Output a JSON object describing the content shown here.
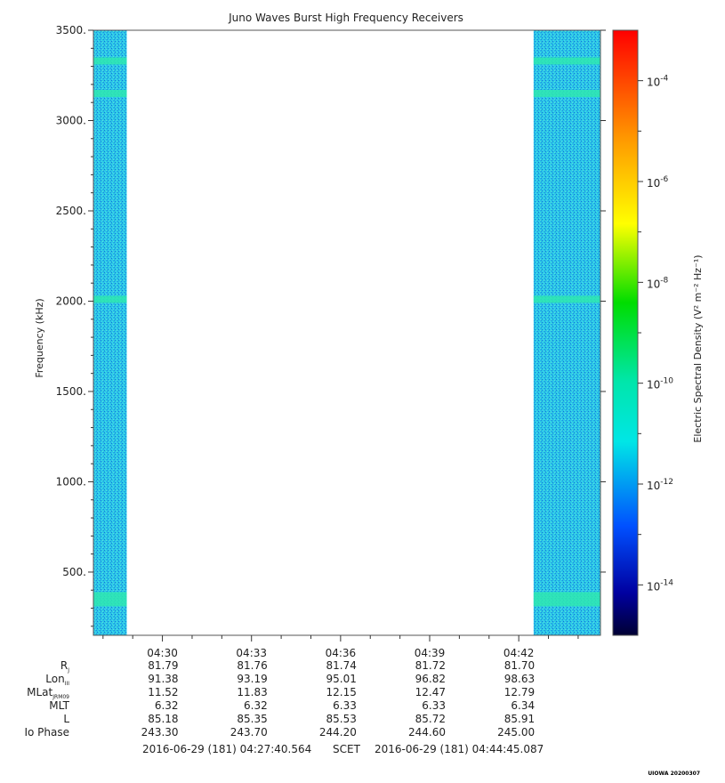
{
  "chart_data": {
    "type": "heatmap",
    "title": "Juno Waves Burst High Frequency Receivers",
    "ylabel": "Frequency (kHz)",
    "colorbar_label": "Electric Spectral Density (V² m⁻² Hz⁻¹)",
    "ylim": [
      150,
      3500
    ],
    "yticks": [
      {
        "value": 500,
        "label": "500."
      },
      {
        "value": 1000,
        "label": "1000."
      },
      {
        "value": 1500,
        "label": "1500."
      },
      {
        "value": 2000,
        "label": "2000."
      },
      {
        "value": 2500,
        "label": "2500."
      },
      {
        "value": 3000,
        "label": "3000."
      },
      {
        "value": 3500,
        "label": "3500."
      }
    ],
    "x_time_range": [
      "04:27:40.564",
      "04:44:45.087"
    ],
    "xticks": [
      "04:30",
      "04:33",
      "04:36",
      "04:39",
      "04:42"
    ],
    "colorbar_log_range": [
      -15,
      -3
    ],
    "colorbar_ticks": [
      {
        "exp": -14,
        "label": "10",
        "sup": "-14"
      },
      {
        "exp": -12,
        "label": "10",
        "sup": "-12"
      },
      {
        "exp": -10,
        "label": "10",
        "sup": "-10"
      },
      {
        "exp": -8,
        "label": "10",
        "sup": "-8"
      },
      {
        "exp": -6,
        "label": "10",
        "sup": "-6"
      },
      {
        "exp": -4,
        "label": "10",
        "sup": "-4"
      }
    ],
    "data_blocks": [
      {
        "start": "04:27:40",
        "end": "04:28:48",
        "background_log_level": -12
      },
      {
        "start": "04:42:30",
        "end": "04:44:45",
        "background_log_level": -12
      }
    ],
    "emission_bands_khz": [
      350,
      2010,
      3150,
      3330
    ],
    "ephemeris": {
      "rows": [
        {
          "label": "R",
          "sub": "J",
          "values": [
            "81.79",
            "81.76",
            "81.74",
            "81.72",
            "81.70"
          ]
        },
        {
          "label": "Lon",
          "sub": "III",
          "values": [
            "91.38",
            "93.19",
            "95.01",
            "96.82",
            "98.63"
          ]
        },
        {
          "label": "MLat",
          "sub": "JRM09",
          "values": [
            "11.52",
            "11.83",
            "12.15",
            "12.47",
            "12.79"
          ]
        },
        {
          "label": "MLT",
          "sub": "",
          "values": [
            "6.32",
            "6.32",
            "6.33",
            "6.33",
            "6.34"
          ]
        },
        {
          "label": "L",
          "sub": "",
          "values": [
            "85.18",
            "85.35",
            "85.53",
            "85.72",
            "85.91"
          ]
        },
        {
          "label": "Io Phase",
          "sub": "",
          "values": [
            "243.30",
            "243.70",
            "244.20",
            "244.60",
            "245.00"
          ]
        }
      ]
    },
    "time_footer": {
      "start": "2016-06-29 (181) 04:27:40.564",
      "frame": "SCET",
      "end": "2016-06-29 (181) 04:44:45.087"
    }
  },
  "footer_note": "UIOWA 20200307"
}
